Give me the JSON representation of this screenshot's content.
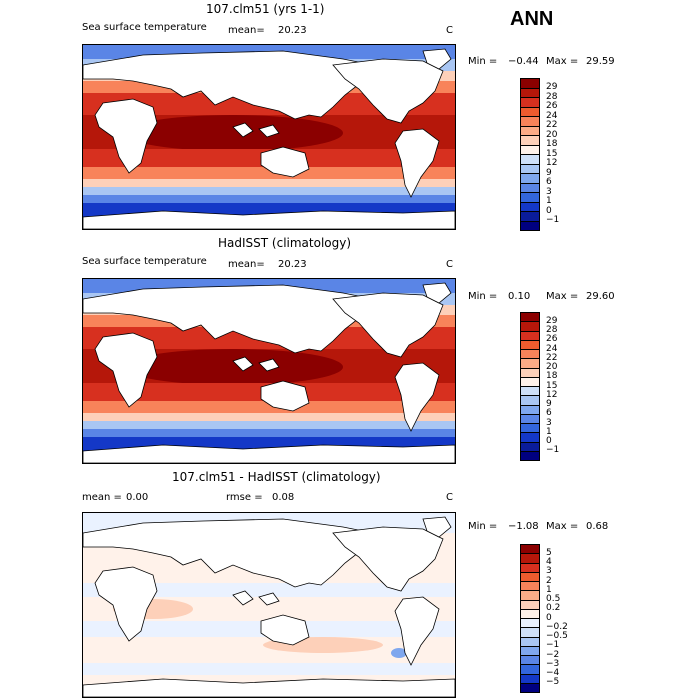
{
  "season": "ANN",
  "panels": [
    {
      "title": "107.clm51 (yrs 1-1)",
      "variable": "Sea surface temperature",
      "mean_label": "mean=",
      "mean_value": "20.23",
      "units": "C",
      "min_label": "Min =",
      "min_value": "−0.44",
      "max_label": "Max =",
      "max_value": "29.59",
      "colorbar": {
        "labels": [
          "29",
          "28",
          "26",
          "24",
          "22",
          "20",
          "18",
          "15",
          "12",
          "9",
          "6",
          "3",
          "1",
          "0",
          "−1"
        ],
        "colors": [
          "#8b0000",
          "#b5170a",
          "#d7301f",
          "#ef5b2e",
          "#f8835a",
          "#fbab87",
          "#fdd0b9",
          "#fff2ea",
          "#cfe0f8",
          "#a9c6f3",
          "#7fa7ee",
          "#5a85e6",
          "#3366dd",
          "#1438c7",
          "#0a1c9a",
          "#000080"
        ]
      }
    },
    {
      "title": "HadISST (climatology)",
      "variable": "Sea surface temperature",
      "mean_label": "mean=",
      "mean_value": "20.23",
      "units": "C",
      "min_label": "Min =",
      "min_value": "0.10",
      "max_label": "Max =",
      "max_value": "29.60",
      "colorbar": {
        "labels": [
          "29",
          "28",
          "26",
          "24",
          "22",
          "20",
          "18",
          "15",
          "12",
          "9",
          "6",
          "3",
          "1",
          "0",
          "−1"
        ],
        "colors": [
          "#8b0000",
          "#b5170a",
          "#d7301f",
          "#ef5b2e",
          "#f8835a",
          "#fbab87",
          "#fdd0b9",
          "#fff2ea",
          "#cfe0f8",
          "#a9c6f3",
          "#7fa7ee",
          "#5a85e6",
          "#3366dd",
          "#1438c7",
          "#0a1c9a",
          "#000080"
        ]
      }
    },
    {
      "title": "107.clm51 - HadISST (climatology)",
      "variable": "",
      "mean_label": "mean =",
      "mean_value": "0.00",
      "rmse_label": "rmse =",
      "rmse_value": "0.08",
      "units": "C",
      "min_label": "Min =",
      "min_value": "−1.08",
      "max_label": "Max =",
      "max_value": "0.68",
      "colorbar": {
        "labels": [
          "5",
          "4",
          "3",
          "2",
          "1",
          "0.5",
          "0.2",
          "0",
          "−0.2",
          "−0.5",
          "−1",
          "−2",
          "−3",
          "−4",
          "−5"
        ],
        "colors": [
          "#8b0000",
          "#b5170a",
          "#d7301f",
          "#ef5b2e",
          "#f8835a",
          "#fbab87",
          "#fdd0b9",
          "#fff2ea",
          "#eaf2ff",
          "#cfe0f8",
          "#a9c6f3",
          "#7fa7ee",
          "#5a85e6",
          "#3366dd",
          "#1438c7",
          "#000080"
        ]
      }
    }
  ],
  "chart_data": [
    {
      "type": "heatmap",
      "title": "107.clm51 (yrs 1-1)",
      "variable": "Sea surface temperature",
      "units": "C",
      "mean": 20.23,
      "min": -0.44,
      "max": 29.59,
      "levels": [
        -1,
        0,
        1,
        3,
        6,
        9,
        12,
        15,
        18,
        20,
        22,
        24,
        26,
        28,
        29
      ]
    },
    {
      "type": "heatmap",
      "title": "HadISST (climatology)",
      "variable": "Sea surface temperature",
      "units": "C",
      "mean": 20.23,
      "min": 0.1,
      "max": 29.6,
      "levels": [
        -1,
        0,
        1,
        3,
        6,
        9,
        12,
        15,
        18,
        20,
        22,
        24,
        26,
        28,
        29
      ]
    },
    {
      "type": "heatmap",
      "title": "107.clm51 - HadISST (climatology)",
      "units": "C",
      "mean": 0.0,
      "rmse": 0.08,
      "min": -1.08,
      "max": 0.68,
      "levels": [
        -5,
        -4,
        -3,
        -2,
        -1,
        -0.5,
        -0.2,
        0,
        0.2,
        0.5,
        1,
        2,
        3,
        4,
        5
      ]
    }
  ]
}
